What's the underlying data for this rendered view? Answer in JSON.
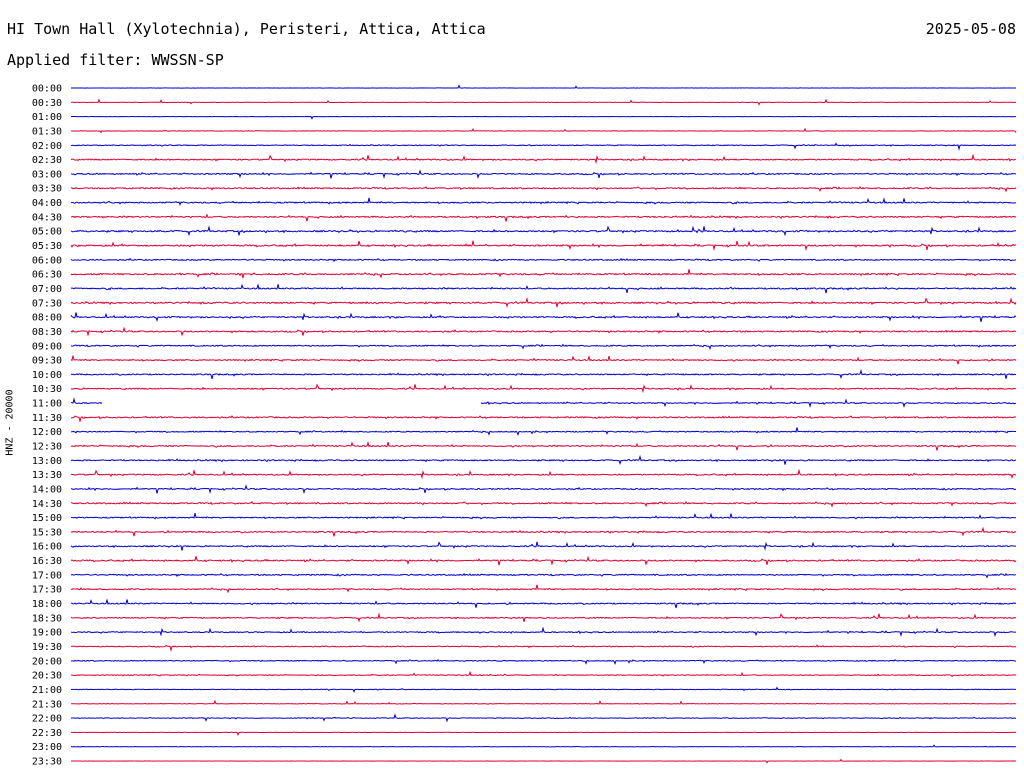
{
  "header": {
    "title": "HI Town Hall (Xylotechnia), Peristeri, Attica, Attica",
    "date": "2025-05-08",
    "filter": "Applied filter: WWSSN-SP"
  },
  "chart_data": {
    "type": "line",
    "title": "HI Town Hall (Xylotechnia), Peristeri, Attica, Attica",
    "ylabel": "HNZ - 20000",
    "row_labels": [
      "00:00",
      "00:30",
      "01:00",
      "01:30",
      "02:00",
      "02:30",
      "03:00",
      "03:30",
      "04:00",
      "04:30",
      "05:00",
      "05:30",
      "06:00",
      "06:30",
      "07:00",
      "07:30",
      "08:00",
      "08:30",
      "09:00",
      "09:30",
      "10:00",
      "10:30",
      "11:00",
      "11:30",
      "12:00",
      "12:30",
      "13:00",
      "13:30",
      "14:00",
      "14:30",
      "15:00",
      "15:30",
      "16:00",
      "16:30",
      "17:00",
      "17:30",
      "18:00",
      "18:30",
      "19:00",
      "19:30",
      "20:00",
      "20:30",
      "21:00",
      "21:30",
      "22:00",
      "22:30",
      "23:00",
      "23:30"
    ],
    "trace_colors": [
      "#0000cc",
      "#dd0033"
    ],
    "activity_level": [
      0.1,
      0.15,
      0.1,
      0.2,
      0.35,
      0.5,
      0.5,
      0.55,
      0.55,
      0.55,
      0.6,
      0.6,
      0.5,
      0.6,
      0.55,
      0.6,
      0.55,
      0.55,
      0.5,
      0.5,
      0.5,
      0.5,
      0.45,
      0.55,
      0.45,
      0.5,
      0.5,
      0.5,
      0.5,
      0.55,
      0.5,
      0.5,
      0.5,
      0.55,
      0.5,
      0.5,
      0.5,
      0.45,
      0.45,
      0.4,
      0.4,
      0.35,
      0.25,
      0.2,
      0.3,
      0.15,
      0.15,
      0.1
    ],
    "gap": {
      "row_label": "11:00",
      "from_minute": 1.0,
      "to_minute": 13.0
    }
  }
}
